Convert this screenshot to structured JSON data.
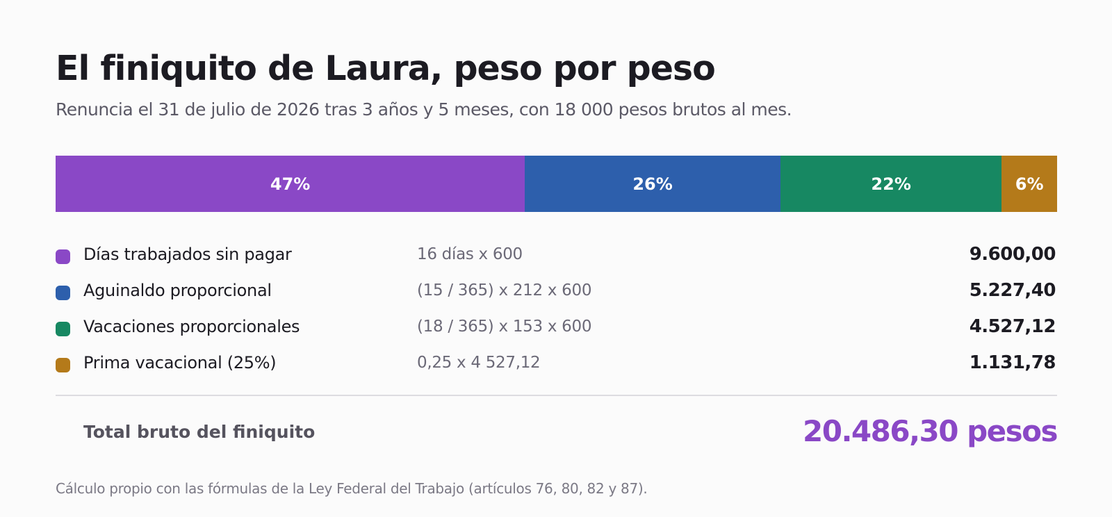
{
  "title": "El finiquito de Laura, peso por peso",
  "subtitle": "Renuncia el 31 de julio de 2026 tras 3 años y 5 meses, con 18 000 pesos brutos al mes.",
  "chart_data": {
    "type": "bar",
    "orientation": "stacked-horizontal-100",
    "categories": [
      "Días trabajados sin pagar",
      "Aguinaldo proporcional",
      "Vacaciones proporcionales",
      "Prima vacacional (25%)"
    ],
    "values": [
      9600.0,
      5227.4,
      4527.12,
      1131.78
    ],
    "percent_labels": [
      "47%",
      "26%",
      "22%",
      "6%"
    ],
    "colors": [
      "#8a48c6",
      "#2d5fac",
      "#178862",
      "#b47a1a"
    ],
    "legend": [
      {
        "label": "Días trabajados sin pagar",
        "formula": "16 días x 600",
        "amount": "9.600,00"
      },
      {
        "label": "Aguinaldo proporcional",
        "formula": "(15 / 365) x 212 x 600",
        "amount": "5.227,40"
      },
      {
        "label": "Vacaciones proporcionales",
        "formula": "(18 / 365) x 153 x 600",
        "amount": "4.527,12"
      },
      {
        "label": "Prima vacacional (25%)",
        "formula": "0,25 x 4 527,12",
        "amount": "1.131,78"
      }
    ]
  },
  "total": {
    "label": "Total bruto del finiquito",
    "amount": "20.486,30 pesos"
  },
  "footnote": "Cálculo propio con las fórmulas de la Ley Federal del Trabajo (artículos 76, 80, 82 y 87)."
}
